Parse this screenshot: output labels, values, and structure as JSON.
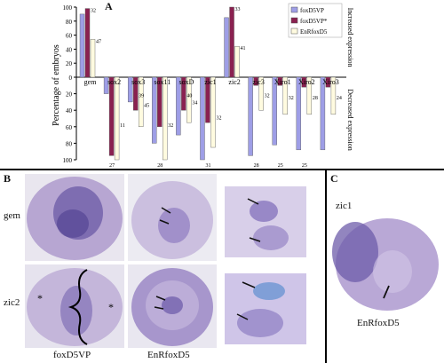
{
  "panels": {
    "a_letter": "A",
    "b_letter": "B",
    "c_letter": "C"
  },
  "chart_data": {
    "type": "bar",
    "ylabel": "Percentage of embryos",
    "right_label_top": "Increased expression",
    "right_label_bottom": "Decreased expression",
    "y_ticks": [
      100,
      80,
      60,
      40,
      20,
      0,
      20,
      40,
      60,
      80,
      100
    ],
    "legend": [
      "foxD5VP",
      "foxD5VP*",
      "EnRfoxD5"
    ],
    "colors": [
      "#9e9ee6",
      "#8a2150",
      "#fffbe0"
    ],
    "up_genes": [
      {
        "gene": "gem",
        "values": [
          90,
          98,
          54
        ],
        "labels": [
          "",
          "32",
          "47"
        ]
      },
      {
        "gene": "zic2",
        "values": [
          85,
          100,
          44
        ],
        "labels": [
          "",
          "33",
          "41"
        ]
      }
    ],
    "down_genes": [
      {
        "gene": "gem",
        "values": [
          0,
          0,
          0
        ],
        "labels": [
          "",
          "",
          ""
        ],
        "bottom": ""
      },
      {
        "gene": "sox2",
        "values": [
          20,
          95,
          100
        ],
        "labels": [
          "",
          "",
          "11"
        ],
        "bottom": "27"
      },
      {
        "gene": "sox3",
        "values": [
          30,
          40,
          60
        ],
        "labels": [
          "",
          "39",
          "45"
        ],
        "bottom": ""
      },
      {
        "gene": "sox11",
        "values": [
          80,
          60,
          100
        ],
        "labels": [
          "",
          "",
          "32"
        ],
        "bottom": "28"
      },
      {
        "gene": "soxD",
        "values": [
          70,
          40,
          55
        ],
        "labels": [
          "",
          "40",
          "34"
        ],
        "bottom": ""
      },
      {
        "gene": "zic1",
        "values": [
          100,
          55,
          85
        ],
        "labels": [
          "",
          "",
          "32"
        ],
        "bottom": "31"
      },
      {
        "gene": "zic2",
        "values": [
          0,
          0,
          0
        ],
        "labels": [
          "",
          "",
          ""
        ],
        "bottom": ""
      },
      {
        "gene": "zic3",
        "values": [
          95,
          10,
          40
        ],
        "labels": [
          "",
          "",
          "32"
        ],
        "bottom": "28"
      },
      {
        "gene": "Xiro1",
        "values": [
          82,
          10,
          45
        ],
        "labels": [
          "",
          "",
          "32"
        ],
        "bottom": "25"
      },
      {
        "gene": "Xiro2",
        "values": [
          88,
          12,
          45
        ],
        "labels": [
          "",
          "",
          "28"
        ],
        "bottom": "25"
      },
      {
        "gene": "Xiro3",
        "values": [
          88,
          12,
          45
        ],
        "labels": [
          "",
          "",
          "24"
        ],
        "bottom": ""
      }
    ]
  },
  "panel_b": {
    "row1_label": "gem",
    "row2_label": "zic2",
    "col1_label": "foxD5VP",
    "col2_label": "EnRfoxD5"
  },
  "panel_c": {
    "top_label": "zic1",
    "bottom_label": "EnRfoxD5"
  }
}
